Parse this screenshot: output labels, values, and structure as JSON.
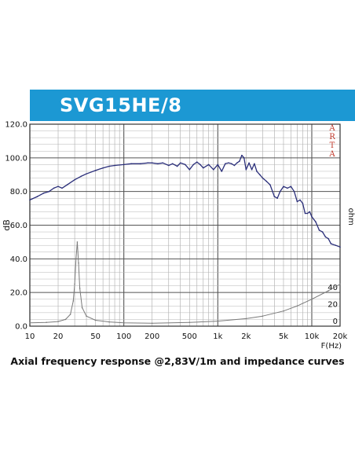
{
  "header": {
    "title": "SVG15HE/8",
    "banner_color": "#1c98d3"
  },
  "caption": "Axial frequency response @2,83V/1m and impedance curves",
  "watermark": [
    "A",
    "R",
    "T",
    "A"
  ],
  "chart_data": {
    "type": "line",
    "xscale": "log",
    "xlim": [
      10,
      20000
    ],
    "ylim": [
      0,
      120
    ],
    "ylabel": "dB",
    "xlabel": "F(Hz)",
    "ylabel_right": "ohm",
    "grid": true,
    "x_tick_labels": [
      {
        "v": 10,
        "t": "10"
      },
      {
        "v": 20,
        "t": "20"
      },
      {
        "v": 50,
        "t": "50"
      },
      {
        "v": 100,
        "t": "100"
      },
      {
        "v": 200,
        "t": "200"
      },
      {
        "v": 500,
        "t": "500"
      },
      {
        "v": 1000,
        "t": "1k"
      },
      {
        "v": 2000,
        "t": "2k"
      },
      {
        "v": 5000,
        "t": "5k"
      },
      {
        "v": 10000,
        "t": "10k"
      },
      {
        "v": 20000,
        "t": "20k"
      }
    ],
    "y_tick_labels": [
      "0.0",
      "20.0",
      "40.0",
      "60.0",
      "80.0",
      "100.0",
      "120.0"
    ],
    "y_ticks": [
      0,
      20,
      40,
      60,
      80,
      100,
      120
    ],
    "right_axis": {
      "ticks": [
        0,
        20,
        40
      ],
      "labels": [
        "0",
        "20",
        "40"
      ],
      "scale": 0.5
    },
    "series": [
      {
        "color": "#2b2f7a",
        "axis": "left",
        "x": [
          10,
          12,
          14,
          16,
          18,
          20,
          22,
          25,
          30,
          35,
          40,
          50,
          60,
          70,
          80,
          100,
          120,
          150,
          180,
          200,
          230,
          260,
          300,
          330,
          370,
          400,
          450,
          500,
          550,
          600,
          650,
          700,
          800,
          900,
          1000,
          1100,
          1200,
          1300,
          1400,
          1500,
          1600,
          1700,
          1800,
          1900,
          2000,
          2150,
          2300,
          2450,
          2600,
          2800,
          3000,
          3300,
          3600,
          4000,
          4300,
          4600,
          5000,
          5500,
          6000,
          6500,
          7000,
          7500,
          8000,
          8500,
          9000,
          9500,
          10000,
          11000,
          12000,
          13000,
          14000,
          15000,
          16000,
          18000,
          20000
        ],
        "y": [
          75,
          77,
          79,
          80,
          82,
          83,
          82,
          84,
          87,
          89,
          90.5,
          92.5,
          94,
          95,
          95.5,
          96,
          96.5,
          96.5,
          97,
          97,
          96.5,
          97,
          95.5,
          96.5,
          95,
          97,
          96,
          93,
          96,
          97.5,
          96,
          94,
          96,
          93,
          96,
          92,
          96.5,
          97,
          96.5,
          95.5,
          97,
          98,
          101.5,
          100,
          93,
          97,
          93,
          96.5,
          92,
          90,
          88,
          86,
          84,
          77,
          76,
          80,
          83,
          82,
          83,
          80,
          74,
          75,
          73,
          67,
          67,
          68,
          65,
          62,
          57,
          56,
          53,
          52,
          49,
          48,
          47
        ]
      },
      {
        "color": "#7a7a7a",
        "axis": "right",
        "x": [
          10,
          15,
          20,
          24,
          27,
          29,
          30,
          31,
          32,
          33,
          34,
          36,
          40,
          50,
          70,
          100,
          200,
          500,
          1000,
          2000,
          3000,
          5000,
          7000,
          10000,
          15000,
          20000
        ],
        "y": [
          4,
          4.5,
          5.5,
          8,
          14,
          30,
          50,
          80,
          100,
          75,
          45,
          22,
          12,
          7,
          5,
          4,
          3.5,
          4.5,
          6,
          9,
          12,
          18,
          24,
          32,
          42,
          50
        ]
      }
    ]
  }
}
